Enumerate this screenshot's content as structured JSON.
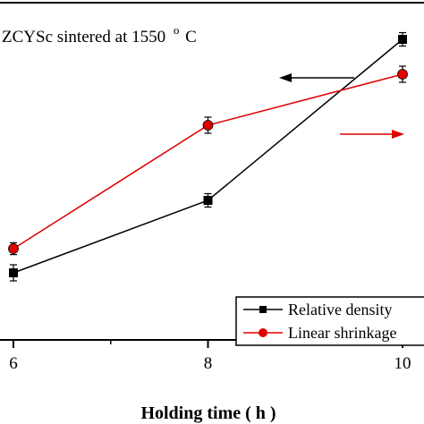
{
  "chart_data": {
    "type": "line",
    "annotation": "ZCYSc sintered at  1550",
    "annotation_sup": "o",
    "annotation_unit": "C",
    "xlabel": "Holding time ( h )",
    "x_ticks": [
      "6",
      "8",
      "10"
    ],
    "xlim": [
      6,
      10
    ],
    "series": [
      {
        "name": "Relative density",
        "color": "#000000",
        "marker": "square",
        "axis": "left",
        "x": [
          6,
          8,
          10
        ],
        "y": [
          0.25,
          0.52,
          1.12
        ],
        "err": [
          0.03,
          0.025,
          0.025
        ]
      },
      {
        "name": "Linear shrinkage",
        "color": "#e00000",
        "marker": "circle",
        "axis": "right",
        "x": [
          6,
          8,
          10
        ],
        "y": [
          0.34,
          0.8,
          0.99
        ],
        "err": [
          0.022,
          0.03,
          0.03
        ]
      }
    ],
    "legend_position": "bottom-right",
    "arrows": [
      {
        "series": "Relative density",
        "direction": "left",
        "color": "#000000"
      },
      {
        "series": "Linear shrinkage",
        "direction": "right",
        "color": "#e00000"
      }
    ],
    "grid": false
  }
}
